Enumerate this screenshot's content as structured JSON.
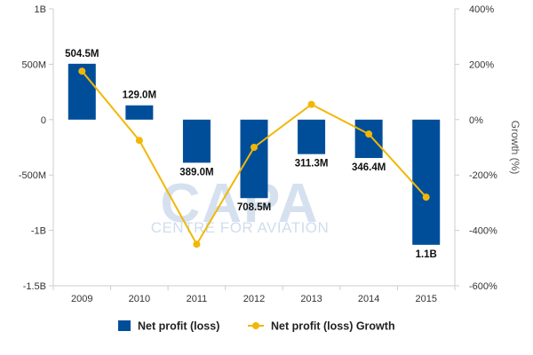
{
  "chart_data": {
    "type": "bar",
    "categories": [
      "2009",
      "2010",
      "2011",
      "2012",
      "2013",
      "2014",
      "2015"
    ],
    "series": [
      {
        "name": "Net profit (loss)",
        "chart_type": "bar",
        "axis": "left",
        "values": [
          504500000,
          129000000,
          -389000000,
          -708500000,
          -311300000,
          -346400000,
          -1130000000
        ],
        "data_labels": [
          "504.5M",
          "129.0M",
          "389.0M",
          "708.5M",
          "311.3M",
          "346.4M",
          "1.1B"
        ],
        "color": "#004e9a"
      },
      {
        "name": "Net profit (loss) Growth",
        "chart_type": "line",
        "axis": "right",
        "values": [
          175,
          -75,
          -450,
          -100,
          55,
          -52,
          -280
        ],
        "color": "#f2b705"
      }
    ],
    "y_left": {
      "ylim": [
        -1500000000,
        1000000000
      ],
      "ticks": [
        1000000000,
        500000000,
        0,
        -500000000,
        -1000000000,
        -1500000000
      ],
      "tick_labels": [
        "1B",
        "500M",
        "0",
        "-500M",
        "-1B",
        "-1.5B"
      ]
    },
    "y_right": {
      "label": "Growth (%)",
      "ylim": [
        -600,
        400
      ],
      "ticks": [
        400,
        200,
        0,
        -200,
        -400,
        -600
      ],
      "tick_labels": [
        "400%",
        "200%",
        "0%",
        "-200%",
        "-400%",
        "-600%"
      ]
    },
    "grid": false,
    "legend_position": "bottom"
  },
  "watermark": {
    "logo_text": "CAPA",
    "tagline": "CENTRE FOR AVIATION"
  }
}
